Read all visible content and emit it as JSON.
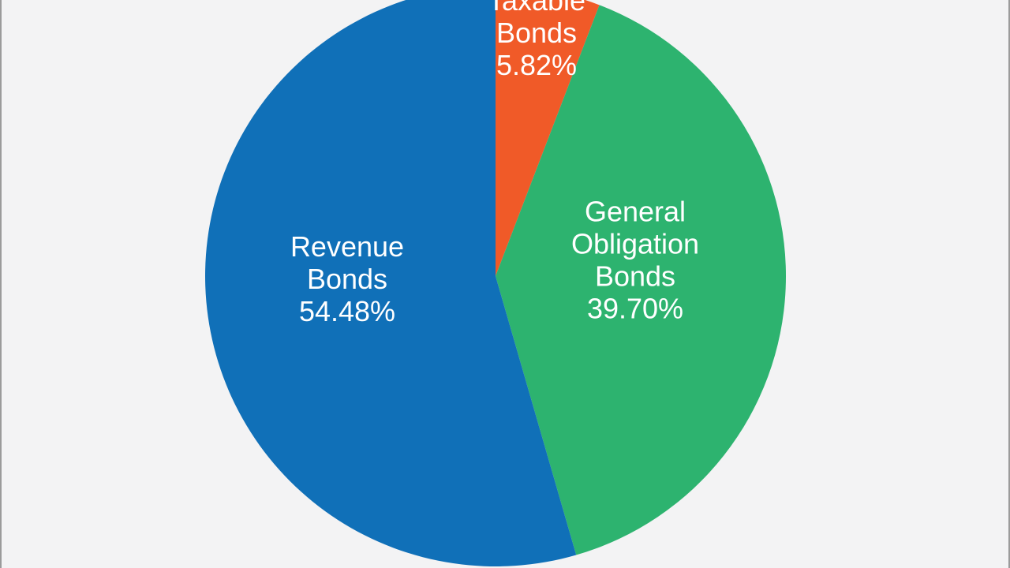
{
  "chart_data": {
    "type": "pie",
    "slices": [
      {
        "label_lines": [
          "Taxable",
          "Bonds"
        ],
        "percent_text": "5.82%",
        "value": 5.82,
        "color": "#f05a28"
      },
      {
        "label_lines": [
          "General",
          "Obligation",
          "Bonds"
        ],
        "percent_text": "39.70%",
        "value": 39.7,
        "color": "#2db36f"
      },
      {
        "label_lines": [
          "Revenue",
          "Bonds"
        ],
        "percent_text": "54.48%",
        "value": 54.48,
        "color": "#1070b8"
      }
    ],
    "start_angle_deg": 0,
    "direction": "clockwise",
    "legend": "none",
    "background_color": "#f3f3f4",
    "border_color": "#9b9b9b"
  }
}
